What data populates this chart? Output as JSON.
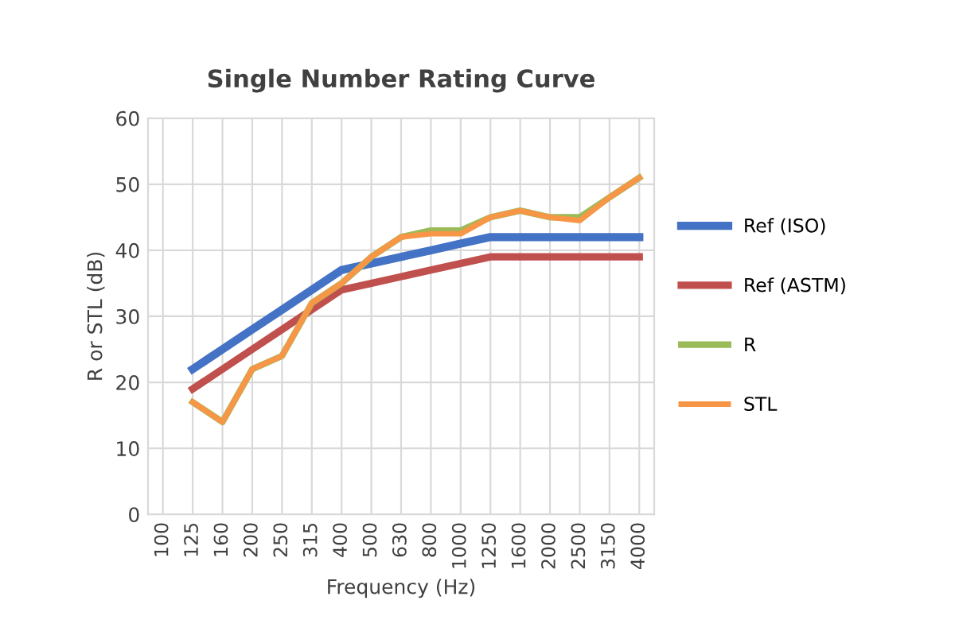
{
  "chart_data": {
    "type": "line",
    "title": "Single Number Rating Curve",
    "xlabel": "Frequency (Hz)",
    "ylabel": "R or STL (dB)",
    "categories": [
      "100",
      "125",
      "160",
      "200",
      "250",
      "315",
      "400",
      "500",
      "630",
      "800",
      "1000",
      "1250",
      "1600",
      "2000",
      "2500",
      "3150",
      "4000"
    ],
    "series": [
      {
        "name": "Ref (ISO)",
        "color": "#4472c4",
        "values": [
          null,
          22,
          25,
          28,
          31,
          34,
          37,
          38,
          39,
          40,
          41,
          42,
          42,
          42,
          42,
          42,
          42
        ]
      },
      {
        "name": "Ref (ASTM)",
        "color": "#c0504d",
        "values": [
          null,
          19,
          22,
          25,
          28,
          31,
          34,
          35,
          36,
          37,
          38,
          39,
          39,
          39,
          39,
          39,
          39
        ]
      },
      {
        "name": "R",
        "color": "#9bbb59",
        "values": [
          null,
          17,
          14,
          22,
          24,
          32,
          35,
          39,
          42,
          43,
          43,
          45,
          46,
          45,
          45,
          48,
          51
        ]
      },
      {
        "name": "STL",
        "color": "#f79646",
        "values": [
          null,
          17,
          14,
          22,
          24,
          32,
          35,
          39,
          42,
          42.5,
          42.5,
          45,
          46,
          45,
          44.5,
          48,
          51
        ]
      }
    ],
    "ylim": [
      0,
      60
    ],
    "yticks": [
      0,
      10,
      20,
      30,
      40,
      50,
      60
    ],
    "grid": true,
    "legend": "right",
    "marker": "none",
    "line_style": "solid"
  }
}
